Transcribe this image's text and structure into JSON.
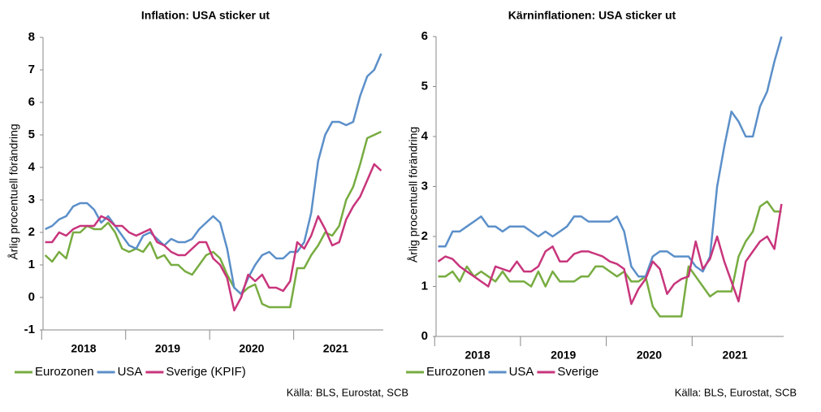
{
  "chart_data": [
    {
      "type": "line",
      "title": "Inflation: USA sticker ut",
      "y_label": "Årlig procentuell förändring",
      "source": "Källa: BLS, Eurostat, SCB",
      "categories": [
        "2018",
        null,
        null,
        null,
        null,
        null,
        null,
        null,
        null,
        null,
        null,
        null,
        "2019",
        null,
        null,
        null,
        null,
        null,
        null,
        null,
        null,
        null,
        null,
        null,
        "2020",
        null,
        null,
        null,
        null,
        null,
        null,
        null,
        null,
        null,
        null,
        null,
        "2021",
        null,
        null,
        null,
        null,
        null,
        null,
        null,
        null,
        null,
        null,
        null,
        null
      ],
      "ylim": [
        -1,
        8
      ],
      "yticks": [
        -1,
        0,
        1,
        2,
        3,
        4,
        5,
        6,
        7,
        8
      ],
      "grid": false,
      "legend": "bottom",
      "series": [
        {
          "name": "Eurozonen",
          "color": "#77ac41",
          "values": [
            1.3,
            1.1,
            1.4,
            1.2,
            2.0,
            2.0,
            2.2,
            2.1,
            2.1,
            2.3,
            2.0,
            1.5,
            1.4,
            1.5,
            1.4,
            1.7,
            1.2,
            1.3,
            1.0,
            1.0,
            0.8,
            0.7,
            1.0,
            1.3,
            1.4,
            1.2,
            0.7,
            0.3,
            0.1,
            0.3,
            0.4,
            -0.2,
            -0.3,
            -0.3,
            -0.3,
            -0.3,
            0.9,
            0.9,
            1.3,
            1.6,
            2.0,
            1.9,
            2.2,
            3.0,
            3.4,
            4.1,
            4.9,
            5.0,
            5.1
          ]
        },
        {
          "name": "USA",
          "color": "#5b8fc9",
          "values": [
            2.1,
            2.2,
            2.4,
            2.5,
            2.8,
            2.9,
            2.9,
            2.7,
            2.3,
            2.5,
            2.2,
            1.9,
            1.6,
            1.5,
            1.9,
            2.0,
            1.8,
            1.6,
            1.8,
            1.7,
            1.7,
            1.8,
            2.1,
            2.3,
            2.5,
            2.3,
            1.5,
            0.3,
            0.1,
            0.6,
            1.0,
            1.3,
            1.4,
            1.2,
            1.2,
            1.4,
            1.4,
            1.7,
            2.6,
            4.2,
            5.0,
            5.4,
            5.4,
            5.3,
            5.4,
            6.2,
            6.8,
            7.0,
            7.5
          ]
        },
        {
          "name": "Sverige (KPIF)",
          "color": "#c8357c",
          "values": [
            1.7,
            1.7,
            2.0,
            1.9,
            2.1,
            2.2,
            2.2,
            2.2,
            2.5,
            2.4,
            2.2,
            2.2,
            2.0,
            1.9,
            2.0,
            2.1,
            1.7,
            1.6,
            1.4,
            1.3,
            1.3,
            1.5,
            1.7,
            1.7,
            1.2,
            1.0,
            0.6,
            -0.4,
            0.0,
            0.7,
            0.5,
            0.7,
            0.3,
            0.3,
            0.2,
            0.5,
            1.7,
            1.5,
            1.9,
            2.5,
            2.1,
            1.6,
            1.7,
            2.4,
            2.8,
            3.1,
            3.6,
            4.1,
            3.9
          ]
        }
      ]
    },
    {
      "type": "line",
      "title": "Kärninflationen: USA sticker ut",
      "y_label": "Årlig procentuell förändring",
      "source": "Källa: BLS, Eurostat, SCB",
      "categories": [
        "2018",
        null,
        null,
        null,
        null,
        null,
        null,
        null,
        null,
        null,
        null,
        null,
        "2019",
        null,
        null,
        null,
        null,
        null,
        null,
        null,
        null,
        null,
        null,
        null,
        "2020",
        null,
        null,
        null,
        null,
        null,
        null,
        null,
        null,
        null,
        null,
        null,
        "2021",
        null,
        null,
        null,
        null,
        null,
        null,
        null,
        null,
        null,
        null,
        null,
        null
      ],
      "ylim": [
        0,
        6
      ],
      "yticks": [
        0,
        1,
        2,
        3,
        4,
        5,
        6
      ],
      "grid": false,
      "legend": "bottom",
      "series": [
        {
          "name": "Eurozonen",
          "color": "#77ac41",
          "values": [
            1.2,
            1.2,
            1.3,
            1.1,
            1.4,
            1.2,
            1.3,
            1.2,
            1.1,
            1.3,
            1.1,
            1.1,
            1.1,
            1.0,
            1.3,
            1.0,
            1.3,
            1.1,
            1.1,
            1.1,
            1.2,
            1.2,
            1.4,
            1.4,
            1.3,
            1.2,
            1.3,
            1.1,
            1.1,
            1.2,
            0.6,
            0.4,
            0.4,
            0.4,
            0.4,
            1.4,
            1.2,
            1.0,
            0.8,
            0.9,
            0.9,
            0.9,
            1.6,
            1.9,
            2.1,
            2.6,
            2.7,
            2.5,
            2.5
          ]
        },
        {
          "name": "USA",
          "color": "#5b8fc9",
          "values": [
            1.8,
            1.8,
            2.1,
            2.1,
            2.2,
            2.3,
            2.4,
            2.2,
            2.2,
            2.1,
            2.2,
            2.2,
            2.2,
            2.1,
            2.0,
            2.1,
            2.0,
            2.1,
            2.2,
            2.4,
            2.4,
            2.3,
            2.3,
            2.3,
            2.3,
            2.4,
            2.1,
            1.4,
            1.2,
            1.2,
            1.6,
            1.7,
            1.7,
            1.6,
            1.6,
            1.6,
            1.4,
            1.3,
            1.6,
            3.0,
            3.8,
            4.5,
            4.3,
            4.0,
            4.0,
            4.6,
            4.9,
            5.5,
            6.0
          ]
        },
        {
          "name": "Sverige",
          "color": "#c8357c",
          "values": [
            1.5,
            1.6,
            1.55,
            1.4,
            1.3,
            1.2,
            1.1,
            1.0,
            1.4,
            1.35,
            1.3,
            1.5,
            1.3,
            1.3,
            1.4,
            1.7,
            1.8,
            1.5,
            1.5,
            1.65,
            1.7,
            1.7,
            1.65,
            1.6,
            1.5,
            1.45,
            1.35,
            0.65,
            0.95,
            1.15,
            1.5,
            1.35,
            0.85,
            1.05,
            1.15,
            1.2,
            1.9,
            1.35,
            1.55,
            2.0,
            1.5,
            1.1,
            0.7,
            1.5,
            1.7,
            1.9,
            2.0,
            1.75,
            2.65
          ]
        }
      ]
    }
  ]
}
